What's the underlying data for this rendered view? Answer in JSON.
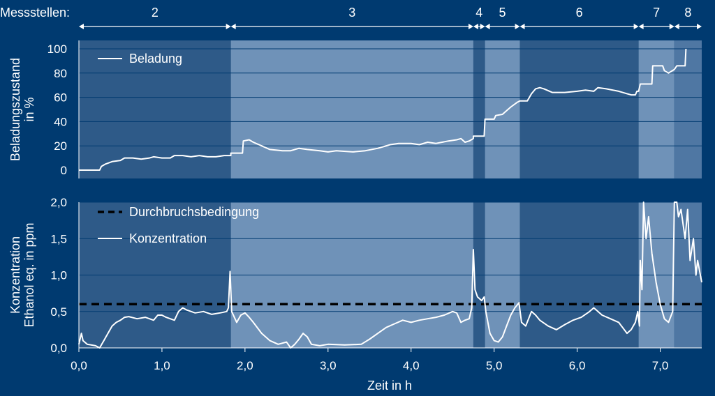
{
  "colors": {
    "background": "#003a70",
    "shade_dark": "#2e5a88",
    "shade_mid": "#4f77a3",
    "shade_light": "#6f92b8",
    "line": "#ffffff",
    "threshold": "#000000",
    "grid": "#003a70"
  },
  "chart_data": {
    "type": "line",
    "shared_x": {
      "label": "Zeit in h",
      "lim": [
        0,
        7.5
      ],
      "ticks": [
        0,
        1,
        2,
        3,
        4,
        5,
        6,
        7
      ],
      "tick_labels": [
        "0,0",
        "1,0",
        "2,0",
        "3,0",
        "4,0",
        "5,0",
        "6,0",
        "7,0"
      ]
    },
    "segments": {
      "header_label": "Messstellen:",
      "items": [
        {
          "label": "2",
          "start": 0.0,
          "end": 1.83,
          "shade": "dark"
        },
        {
          "label": "3",
          "start": 1.83,
          "end": 4.75,
          "shade": "light"
        },
        {
          "label": "4",
          "start": 4.75,
          "end": 4.89,
          "shade": "dark"
        },
        {
          "label": "5",
          "start": 4.89,
          "end": 5.31,
          "shade": "light"
        },
        {
          "label": "6",
          "start": 5.31,
          "end": 6.74,
          "shade": "dark"
        },
        {
          "label": "7",
          "start": 6.74,
          "end": 7.17,
          "shade": "light"
        },
        {
          "label": "8",
          "start": 7.17,
          "end": 7.5,
          "shade": "mid"
        }
      ]
    },
    "panels": [
      {
        "id": "beladung",
        "ylabel_lines": [
          "Beladungszustand",
          "in %"
        ],
        "ylim": [
          0,
          100
        ],
        "yticks": [
          0,
          20,
          40,
          60,
          80,
          100
        ],
        "ytick_labels": [
          "0",
          "20",
          "40",
          "60",
          "80",
          "100"
        ],
        "legend_position": "top-left",
        "series": [
          {
            "name": "Beladung",
            "style": "solid",
            "points": [
              [
                0,
                0
              ],
              [
                0.25,
                0
              ],
              [
                0.27,
                3
              ],
              [
                0.32,
                5
              ],
              [
                0.4,
                7
              ],
              [
                0.5,
                8
              ],
              [
                0.55,
                10
              ],
              [
                0.65,
                10
              ],
              [
                0.75,
                9
              ],
              [
                0.85,
                10
              ],
              [
                0.9,
                11
              ],
              [
                1.0,
                10
              ],
              [
                1.1,
                10
              ],
              [
                1.15,
                12
              ],
              [
                1.25,
                12
              ],
              [
                1.35,
                11
              ],
              [
                1.45,
                12
              ],
              [
                1.55,
                11
              ],
              [
                1.65,
                11
              ],
              [
                1.75,
                12
              ],
              [
                1.83,
                12
              ],
              [
                1.83,
                14
              ],
              [
                1.97,
                14
              ],
              [
                1.98,
                24
              ],
              [
                2.05,
                25
              ],
              [
                2.1,
                23
              ],
              [
                2.2,
                20
              ],
              [
                2.3,
                17
              ],
              [
                2.45,
                16
              ],
              [
                2.55,
                16
              ],
              [
                2.65,
                18
              ],
              [
                2.75,
                17
              ],
              [
                2.9,
                16
              ],
              [
                3.0,
                15
              ],
              [
                3.1,
                16
              ],
              [
                3.3,
                15
              ],
              [
                3.45,
                16
              ],
              [
                3.6,
                18
              ],
              [
                3.75,
                21
              ],
              [
                3.85,
                22
              ],
              [
                4.0,
                22
              ],
              [
                4.1,
                21
              ],
              [
                4.2,
                23
              ],
              [
                4.3,
                22
              ],
              [
                4.45,
                24
              ],
              [
                4.55,
                25
              ],
              [
                4.6,
                26
              ],
              [
                4.65,
                23
              ],
              [
                4.7,
                24
              ],
              [
                4.75,
                26
              ],
              [
                4.75,
                28
              ],
              [
                4.88,
                28
              ],
              [
                4.89,
                42
              ],
              [
                5.0,
                42
              ],
              [
                5.02,
                45
              ],
              [
                5.1,
                46
              ],
              [
                5.15,
                49
              ],
              [
                5.2,
                52
              ],
              [
                5.28,
                56
              ],
              [
                5.31,
                57
              ],
              [
                5.4,
                57
              ],
              [
                5.45,
                63
              ],
              [
                5.5,
                67
              ],
              [
                5.55,
                68
              ],
              [
                5.6,
                67
              ],
              [
                5.7,
                64
              ],
              [
                5.85,
                64
              ],
              [
                6.0,
                65
              ],
              [
                6.1,
                66
              ],
              [
                6.2,
                65
              ],
              [
                6.25,
                68
              ],
              [
                6.35,
                67
              ],
              [
                6.5,
                65
              ],
              [
                6.6,
                63
              ],
              [
                6.65,
                62
              ],
              [
                6.7,
                62
              ],
              [
                6.72,
                65
              ],
              [
                6.74,
                65
              ],
              [
                6.76,
                71
              ],
              [
                6.9,
                71
              ],
              [
                6.91,
                86
              ],
              [
                7.03,
                86
              ],
              [
                7.05,
                82
              ],
              [
                7.1,
                80
              ],
              [
                7.17,
                83
              ],
              [
                7.2,
                86
              ],
              [
                7.3,
                86
              ],
              [
                7.31,
                100
              ]
            ]
          }
        ]
      },
      {
        "id": "konzentration",
        "ylabel_lines": [
          "Konzentration",
          "Ethanol eq. in ppm"
        ],
        "ylim": [
          0,
          2.0
        ],
        "yticks": [
          0,
          0.5,
          1.0,
          1.5,
          2.0
        ],
        "ytick_labels": [
          "0,0",
          "0,5",
          "1,0",
          "1,5",
          "2,0"
        ],
        "legend_position": "top-left",
        "series": [
          {
            "name": "Durchbruchsbedingung",
            "style": "dashed",
            "points": [
              [
                0,
                0.6
              ],
              [
                7.5,
                0.6
              ]
            ]
          },
          {
            "name": "Konzentration",
            "style": "solid",
            "points": [
              [
                0,
                0.05
              ],
              [
                0.03,
                0.2
              ],
              [
                0.05,
                0.1
              ],
              [
                0.1,
                0.05
              ],
              [
                0.2,
                0.03
              ],
              [
                0.25,
                0.0
              ],
              [
                0.3,
                0.1
              ],
              [
                0.35,
                0.2
              ],
              [
                0.4,
                0.3
              ],
              [
                0.45,
                0.35
              ],
              [
                0.5,
                0.38
              ],
              [
                0.55,
                0.42
              ],
              [
                0.6,
                0.43
              ],
              [
                0.7,
                0.4
              ],
              [
                0.8,
                0.42
              ],
              [
                0.9,
                0.38
              ],
              [
                0.95,
                0.45
              ],
              [
                1.0,
                0.45
              ],
              [
                1.05,
                0.42
              ],
              [
                1.1,
                0.4
              ],
              [
                1.15,
                0.38
              ],
              [
                1.2,
                0.5
              ],
              [
                1.25,
                0.55
              ],
              [
                1.3,
                0.52
              ],
              [
                1.4,
                0.48
              ],
              [
                1.5,
                0.5
              ],
              [
                1.6,
                0.46
              ],
              [
                1.7,
                0.48
              ],
              [
                1.78,
                0.5
              ],
              [
                1.8,
                0.55
              ],
              [
                1.82,
                1.05
              ],
              [
                1.84,
                0.5
              ],
              [
                1.9,
                0.35
              ],
              [
                1.95,
                0.45
              ],
              [
                2.0,
                0.48
              ],
              [
                2.05,
                0.42
              ],
              [
                2.1,
                0.35
              ],
              [
                2.2,
                0.2
              ],
              [
                2.3,
                0.1
              ],
              [
                2.4,
                0.05
              ],
              [
                2.5,
                0.08
              ],
              [
                2.55,
                0.0
              ],
              [
                2.6,
                0.05
              ],
              [
                2.65,
                0.12
              ],
              [
                2.7,
                0.2
              ],
              [
                2.75,
                0.15
              ],
              [
                2.8,
                0.05
              ],
              [
                2.9,
                0.03
              ],
              [
                3.0,
                0.05
              ],
              [
                3.2,
                0.04
              ],
              [
                3.4,
                0.05
              ],
              [
                3.5,
                0.12
              ],
              [
                3.6,
                0.2
              ],
              [
                3.7,
                0.28
              ],
              [
                3.8,
                0.33
              ],
              [
                3.9,
                0.38
              ],
              [
                4.0,
                0.35
              ],
              [
                4.1,
                0.38
              ],
              [
                4.2,
                0.4
              ],
              [
                4.3,
                0.42
              ],
              [
                4.4,
                0.45
              ],
              [
                4.5,
                0.5
              ],
              [
                4.55,
                0.48
              ],
              [
                4.6,
                0.35
              ],
              [
                4.65,
                0.38
              ],
              [
                4.7,
                0.4
              ],
              [
                4.73,
                0.55
              ],
              [
                4.75,
                1.35
              ],
              [
                4.77,
                0.8
              ],
              [
                4.8,
                0.7
              ],
              [
                4.85,
                0.65
              ],
              [
                4.88,
                0.7
              ],
              [
                4.9,
                0.5
              ],
              [
                4.95,
                0.2
              ],
              [
                5.0,
                0.1
              ],
              [
                5.05,
                0.08
              ],
              [
                5.1,
                0.15
              ],
              [
                5.15,
                0.3
              ],
              [
                5.2,
                0.45
              ],
              [
                5.25,
                0.55
              ],
              [
                5.3,
                0.62
              ],
              [
                5.33,
                0.35
              ],
              [
                5.38,
                0.3
              ],
              [
                5.45,
                0.5
              ],
              [
                5.5,
                0.45
              ],
              [
                5.55,
                0.38
              ],
              [
                5.65,
                0.3
              ],
              [
                5.75,
                0.25
              ],
              [
                5.85,
                0.32
              ],
              [
                5.95,
                0.38
              ],
              [
                6.05,
                0.42
              ],
              [
                6.15,
                0.5
              ],
              [
                6.2,
                0.55
              ],
              [
                6.3,
                0.45
              ],
              [
                6.4,
                0.4
              ],
              [
                6.5,
                0.35
              ],
              [
                6.6,
                0.2
              ],
              [
                6.65,
                0.25
              ],
              [
                6.7,
                0.35
              ],
              [
                6.73,
                0.5
              ],
              [
                6.75,
                0.3
              ],
              [
                6.76,
                1.2
              ],
              [
                6.78,
                0.8
              ],
              [
                6.8,
                2.0
              ],
              [
                6.83,
                1.5
              ],
              [
                6.86,
                1.8
              ],
              [
                6.9,
                1.3
              ],
              [
                6.95,
                0.9
              ],
              [
                7.0,
                0.6
              ],
              [
                7.05,
                0.4
              ],
              [
                7.1,
                0.35
              ],
              [
                7.15,
                0.5
              ],
              [
                7.17,
                2.0
              ],
              [
                7.2,
                2.0
              ],
              [
                7.22,
                1.8
              ],
              [
                7.25,
                1.9
              ],
              [
                7.3,
                1.5
              ],
              [
                7.33,
                1.9
              ],
              [
                7.36,
                1.2
              ],
              [
                7.4,
                1.5
              ],
              [
                7.43,
                1.0
              ],
              [
                7.45,
                1.2
              ],
              [
                7.5,
                0.9
              ]
            ]
          }
        ]
      }
    ]
  }
}
